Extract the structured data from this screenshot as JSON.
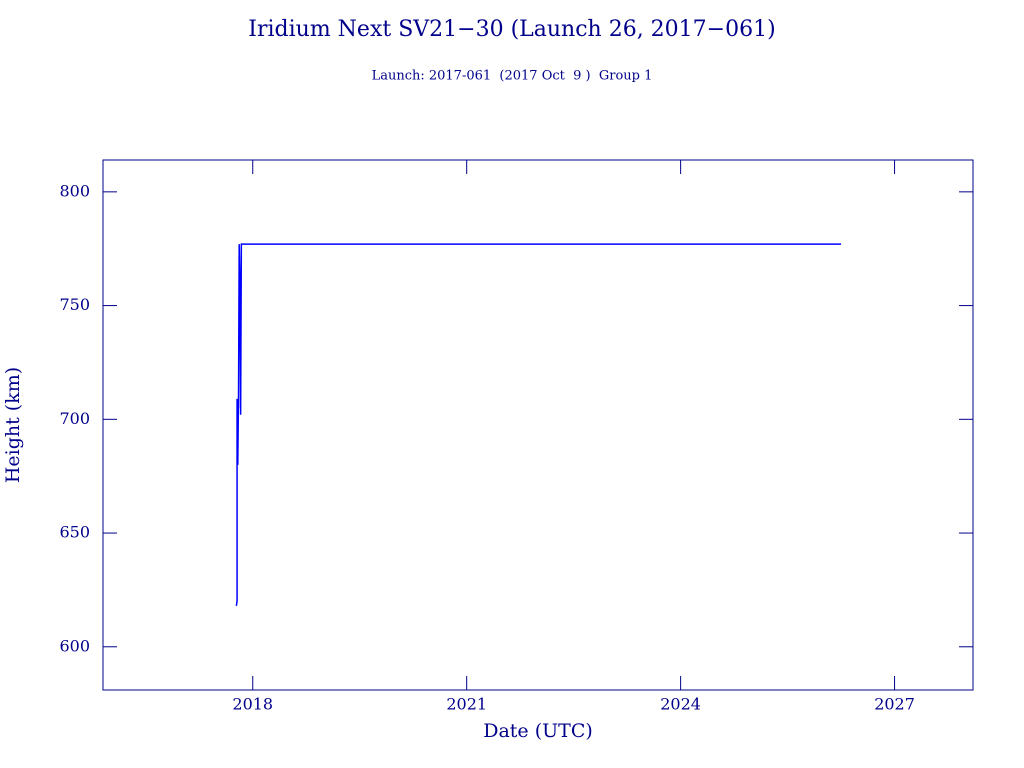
{
  "chart_data": {
    "type": "line",
    "title": "Iridium Next SV21−30 (Launch 26, 2017−061)",
    "subtitle": "Launch: 2017-061  (2017 Oct  9 )  Group 1",
    "x_label": "Date (UTC)",
    "y_label": "Height (km)",
    "x": [
      2017.77,
      2017.78,
      2017.78,
      2017.79,
      2017.8,
      2017.8,
      2017.81,
      2017.82,
      2017.83,
      2017.84,
      2017.85,
      2026.25
    ],
    "series": [
      {
        "name": "Height",
        "color": "#0000ff",
        "values": [
          618,
          620,
          709,
          680,
          710,
          705,
          777,
          760,
          702,
          777,
          777,
          777
        ]
      }
    ],
    "xlim": [
      2015.9,
      2028.1
    ],
    "xticks": [
      2018,
      2021,
      2024,
      2027
    ],
    "ylim": [
      581,
      814
    ],
    "yticks": [
      600,
      650,
      700,
      750,
      800
    ],
    "grid": false
  }
}
